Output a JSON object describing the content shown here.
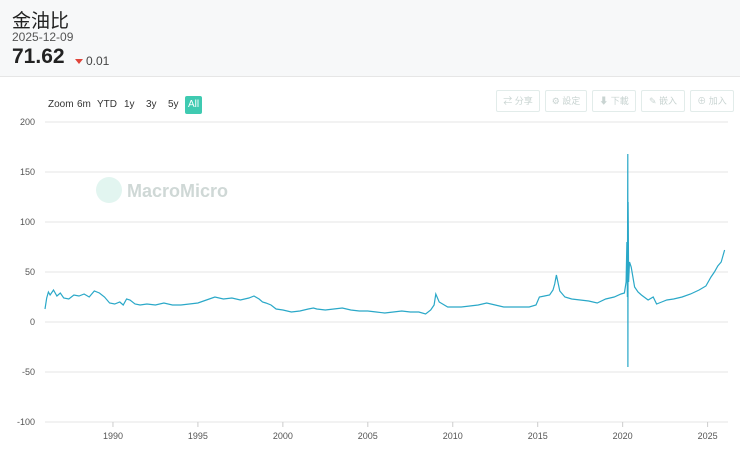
{
  "header": {
    "title": "金油比",
    "date": "2025-12-09",
    "value": "71.62",
    "change": "0.01"
  },
  "zoom": {
    "label": "Zoom",
    "options": [
      "6m",
      "YTD",
      "1y",
      "3y",
      "5y",
      "All"
    ],
    "active": "All"
  },
  "toolbar": {
    "share": "分享",
    "settings": "設定",
    "download": "下載",
    "embed": "嵌入",
    "add": "加入"
  },
  "watermark": "MacroMicro",
  "colors": {
    "line": "#2aa8c8",
    "accent": "#3fcab1",
    "down": "#e0453b"
  },
  "chart_data": {
    "type": "line",
    "title": "",
    "xlabel": "",
    "ylabel": "",
    "xlim": [
      1986.0,
      2026.2
    ],
    "ylim": [
      -100,
      200
    ],
    "y_ticks": [
      200,
      150,
      100,
      50,
      0,
      -50,
      -100
    ],
    "x_ticks": [
      1990,
      1995,
      2000,
      2005,
      2010,
      2015,
      2020,
      2025
    ],
    "grid": true,
    "series": [
      {
        "x": [
          1986.0,
          1986.1,
          1986.2,
          1986.3,
          1986.5,
          1986.7,
          1986.9,
          1987.1,
          1987.4,
          1987.7,
          1988.0,
          1988.3,
          1988.6,
          1988.9,
          1989.2,
          1989.5,
          1989.8,
          1990.1,
          1990.4,
          1990.6,
          1990.8,
          1991.0,
          1991.3,
          1991.6,
          1992.0,
          1992.5,
          1993.0,
          1993.5,
          1994.0,
          1994.5,
          1995.0,
          1995.5,
          1996.0,
          1996.5,
          1997.0,
          1997.5,
          1998.0,
          1998.3,
          1998.6,
          1998.8,
          1999.0,
          1999.3,
          1999.6,
          2000.0,
          2000.5,
          2001.0,
          2001.5,
          2001.8,
          2002.0,
          2002.5,
          2003.0,
          2003.5,
          2004.0,
          2004.5,
          2005.0,
          2005.5,
          2006.0,
          2006.5,
          2007.0,
          2007.5,
          2008.0,
          2008.4,
          2008.7,
          2008.9,
          2009.0,
          2009.2,
          2009.4,
          2009.7,
          2010.0,
          2010.5,
          2011.0,
          2011.5,
          2012.0,
          2012.5,
          2013.0,
          2013.5,
          2014.0,
          2014.5,
          2014.9,
          2015.1,
          2015.4,
          2015.7,
          2015.9,
          2016.0,
          2016.1,
          2016.3,
          2016.6,
          2017.0,
          2017.5,
          2018.0,
          2018.5,
          2019.0,
          2019.5,
          2019.9,
          2020.1,
          2020.2,
          2020.25,
          2020.28,
          2020.3,
          2020.31,
          2020.32,
          2020.33,
          2020.35,
          2020.4,
          2020.5,
          2020.7,
          2020.9,
          2021.1,
          2021.5,
          2021.8,
          2022.0,
          2022.3,
          2022.6,
          2023.0,
          2023.5,
          2024.0,
          2024.5,
          2024.9,
          2025.2,
          2025.4,
          2025.6,
          2025.8,
          2025.9,
          2026.0
        ],
        "y": [
          13,
          24,
          30,
          27,
          32,
          26,
          29,
          24,
          23,
          27,
          26,
          28,
          25,
          31,
          29,
          25,
          19,
          18,
          20,
          17,
          23,
          22,
          18,
          17,
          18,
          17,
          19,
          17,
          17,
          18,
          19,
          22,
          25,
          23,
          24,
          22,
          24,
          26,
          23,
          20,
          19,
          17,
          13,
          12,
          10,
          11,
          13,
          14,
          13,
          12,
          13,
          14,
          12,
          11,
          11,
          10,
          9,
          10,
          11,
          10,
          10,
          8,
          12,
          17,
          28,
          20,
          18,
          15,
          15,
          15,
          16,
          17,
          19,
          17,
          15,
          15,
          15,
          15,
          17,
          25,
          26,
          27,
          32,
          38,
          47,
          31,
          25,
          23,
          22,
          21,
          19,
          23,
          25,
          28,
          29,
          40,
          80,
          25,
          168,
          -45,
          120,
          95,
          40,
          60,
          55,
          35,
          30,
          27,
          22,
          25,
          18,
          20,
          22,
          23,
          25,
          28,
          32,
          36,
          45,
          50,
          56,
          60,
          66,
          72
        ]
      }
    ]
  }
}
